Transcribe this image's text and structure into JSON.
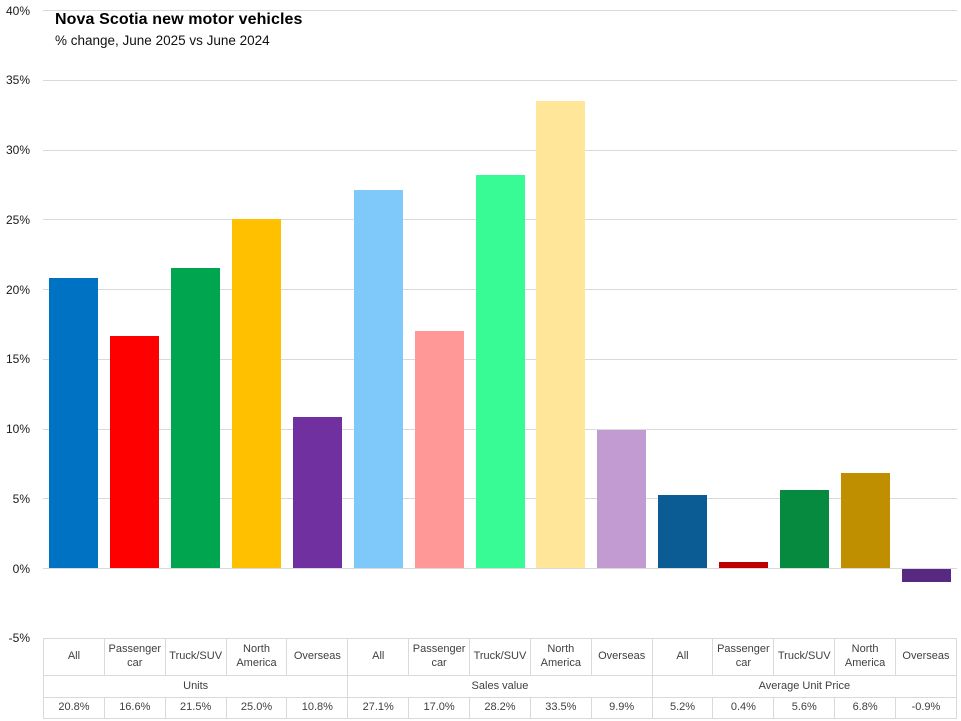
{
  "title": {
    "text": "Nova Scotia new motor vehicles",
    "subtitle": "% change, June 2025 vs June 2024"
  },
  "chart_data": {
    "type": "bar",
    "title": "Nova Scotia new motor vehicles",
    "subtitle": "% change, June 2025 vs June 2024",
    "categories": [
      "All",
      "Passenger car",
      "Truck/SUV",
      "North America",
      "Overseas"
    ],
    "series": [
      {
        "name": "Units",
        "values": [
          20.8,
          16.6,
          21.5,
          25.0,
          10.8
        ],
        "labels": [
          "20.8%",
          "16.6%",
          "21.5%",
          "25.0%",
          "10.8%"
        ],
        "colors": [
          "#0072C4",
          "#FF0000",
          "#00A550",
          "#FFC000",
          "#7030A0"
        ]
      },
      {
        "name": "Sales value",
        "values": [
          27.1,
          17.0,
          28.2,
          33.5,
          9.9
        ],
        "labels": [
          "27.1%",
          "17.0%",
          "28.2%",
          "33.5%",
          "9.9%"
        ],
        "colors": [
          "#7EC8FA",
          "#FF9896",
          "#38FB95",
          "#FFE699",
          "#C39BD3"
        ]
      },
      {
        "name": "Average Unit Price",
        "values": [
          5.2,
          0.4,
          5.6,
          6.8,
          -0.9
        ],
        "labels": [
          "5.2%",
          "0.4%",
          "5.6%",
          "6.8%",
          "-0.9%"
        ],
        "colors": [
          "#0B5B95",
          "#C00000",
          "#068A40",
          "#BF8F00",
          "#582980"
        ]
      }
    ],
    "y_ticks": [
      "40%",
      "35%",
      "30%",
      "25%",
      "20%",
      "15%",
      "10%",
      "5%",
      "0%",
      "-5%"
    ],
    "ylim": [
      -5,
      40
    ],
    "grid": true,
    "legend_position": "none",
    "data_table_below": true
  },
  "colors": {
    "gridline": "#D9D9D9",
    "table_border": "#D9D9D9",
    "table_text": "#404040",
    "axis_text": "#1a1a1a",
    "background": "#FFFFFF"
  }
}
